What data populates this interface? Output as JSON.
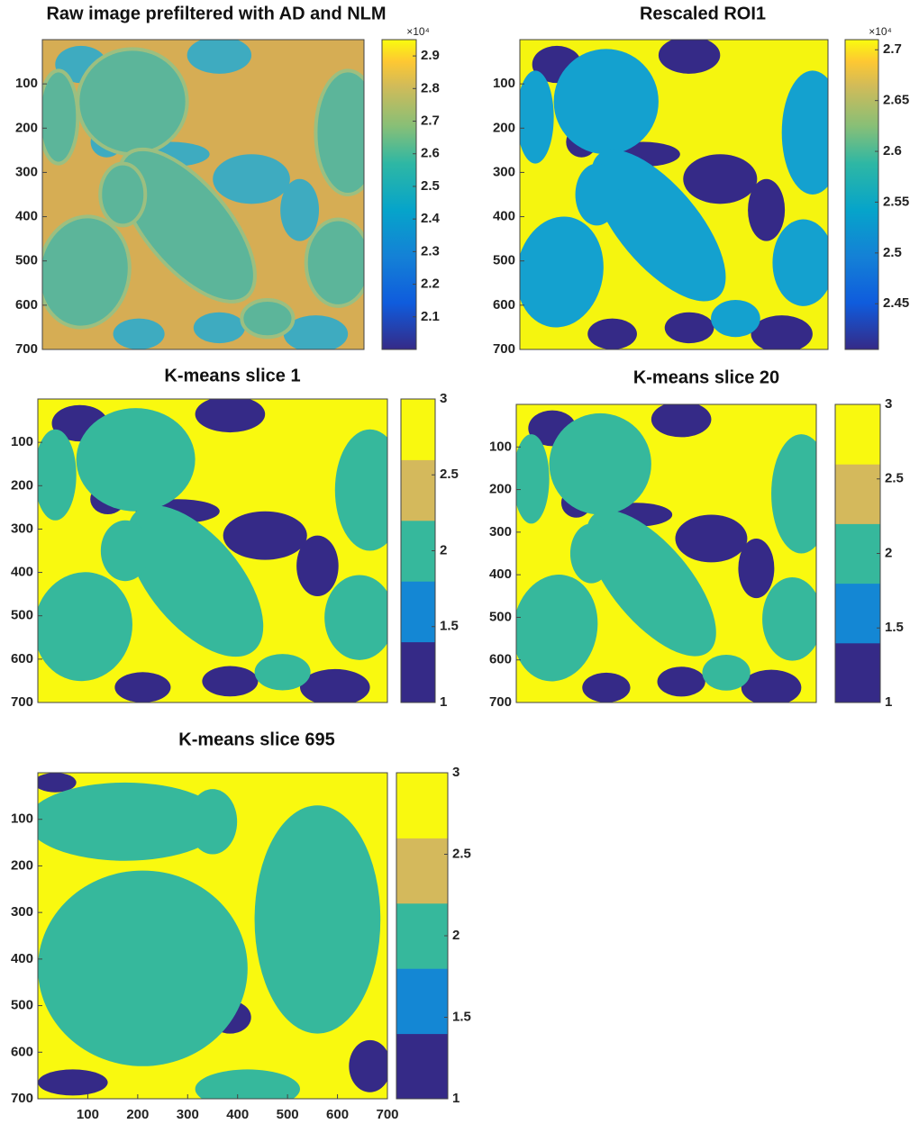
{
  "chart_data": [
    {
      "type": "image",
      "title": "Raw image prefiltered with AD and NLM",
      "ylim": [
        0,
        700
      ],
      "yticks": [
        100,
        200,
        300,
        400,
        500,
        600,
        700
      ],
      "colorbar": {
        "colormap": "parula",
        "clim": [
          2.0,
          2.95
        ],
        "ticks": [
          2.1,
          2.2,
          2.3,
          2.4,
          2.5,
          2.6,
          2.7,
          2.8,
          2.9
        ],
        "exponent": "×10⁴"
      }
    },
    {
      "type": "image",
      "title": "Rescaled ROI1",
      "ylim": [
        0,
        700
      ],
      "yticks": [
        100,
        200,
        300,
        400,
        500,
        600,
        700
      ],
      "colorbar": {
        "colormap": "parula",
        "clim": [
          2.405,
          2.71
        ],
        "ticks": [
          2.45,
          2.5,
          2.55,
          2.6,
          2.65,
          2.7
        ],
        "exponent": "×10⁴"
      }
    },
    {
      "type": "image",
      "title": "K-means slice 1",
      "ylim": [
        0,
        700
      ],
      "yticks": [
        100,
        200,
        300,
        400,
        500,
        600,
        700
      ],
      "colorbar": {
        "clim": [
          1,
          3
        ],
        "ticks": [
          1,
          1.5,
          2,
          2.5,
          3
        ],
        "colors": [
          "#352a87",
          "#1487d4",
          "#36b89c",
          "#d4b95c",
          "#f9f90f"
        ]
      }
    },
    {
      "type": "image",
      "title": "K-means slice 20",
      "ylim": [
        0,
        700
      ],
      "yticks": [
        100,
        200,
        300,
        400,
        500,
        600,
        700
      ],
      "colorbar": {
        "clim": [
          1,
          3
        ],
        "ticks": [
          1,
          1.5,
          2,
          2.5,
          3
        ],
        "colors": [
          "#352a87",
          "#1487d4",
          "#36b89c",
          "#d4b95c",
          "#f9f90f"
        ]
      }
    },
    {
      "type": "image",
      "title": "K-means slice 695",
      "ylim": [
        0,
        700
      ],
      "yticks": [
        100,
        200,
        300,
        400,
        500,
        600,
        700
      ],
      "xlim": [
        0,
        700
      ],
      "xticks": [
        100,
        200,
        300,
        400,
        500,
        600,
        700
      ],
      "colorbar": {
        "clim": [
          1,
          3
        ],
        "ticks": [
          1,
          1.5,
          2,
          2.5,
          3
        ],
        "colors": [
          "#352a87",
          "#1487d4",
          "#36b89c",
          "#d4b95c",
          "#f9f90f"
        ]
      }
    }
  ]
}
